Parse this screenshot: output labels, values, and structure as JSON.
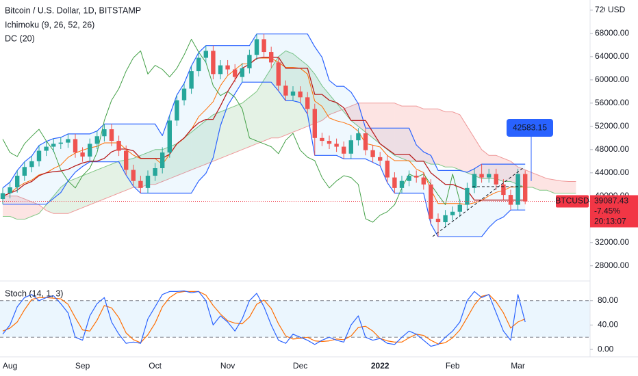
{
  "chart_data": {
    "type": "candlestick",
    "title": "Bitcoin / U.S. Dollar, 1D, BITSTAMP",
    "indicator_labels": [
      "Ichimoku (9, 26, 52, 26)",
      "DC (20)"
    ],
    "currency": "USD",
    "categories": [
      null,
      "Aug",
      null,
      null,
      null,
      null,
      null,
      null,
      null,
      null,
      null,
      "Sep",
      null,
      null,
      null,
      null,
      null,
      null,
      null,
      null,
      null,
      "Oct",
      null,
      null,
      null,
      null,
      null,
      null,
      null,
      null,
      null,
      "Nov",
      null,
      null,
      null,
      null,
      null,
      null,
      null,
      null,
      null,
      "Dec",
      null,
      null,
      null,
      null,
      null,
      null,
      null,
      null,
      null,
      null,
      "2022",
      null,
      null,
      null,
      null,
      null,
      null,
      null,
      null,
      null,
      "Feb",
      null,
      null,
      null,
      null,
      null,
      null,
      null,
      null,
      "Mar",
      null,
      null,
      null,
      null,
      null,
      null,
      null,
      null
    ],
    "up_color": "#26a69a",
    "down_color": "#ef5350",
    "open": [
      39500,
      40500,
      41500,
      43500,
      45000,
      46000,
      47800,
      48500,
      49000,
      49200,
      49800,
      47500,
      46800,
      49000,
      50300,
      51500,
      49500,
      47800,
      44500,
      42600,
      41400,
      43500,
      44800,
      47500,
      53000,
      56500,
      58500,
      61500,
      63800,
      65000,
      61000,
      62500,
      61800,
      60500,
      62000,
      64300,
      67000,
      64800,
      63000,
      59000,
      57300,
      58000,
      57000,
      55000,
      50000,
      49500,
      49000,
      48500,
      47300,
      49600,
      50800,
      47900,
      46700,
      46100,
      43200,
      41400,
      42600,
      43500,
      43200,
      42000,
      36100,
      35500,
      36700,
      37300,
      38500,
      41400,
      43800,
      43200,
      43800,
      42000,
      40200,
      38500,
      43800,
      null,
      null,
      null,
      null,
      null,
      null,
      null
    ],
    "high": [
      41400,
      42400,
      44400,
      45900,
      46900,
      48700,
      49400,
      49900,
      50100,
      50700,
      50700,
      48400,
      49900,
      51200,
      52400,
      52400,
      50400,
      48700,
      45400,
      43500,
      44400,
      45700,
      48400,
      53900,
      57400,
      59400,
      62400,
      64700,
      65900,
      65900,
      63400,
      63400,
      62700,
      62900,
      65200,
      67900,
      67900,
      65700,
      63900,
      59900,
      58900,
      58900,
      57900,
      55900,
      50900,
      50400,
      49900,
      49400,
      50500,
      51700,
      51700,
      48800,
      47600,
      47000,
      44100,
      43500,
      44400,
      44400,
      44100,
      42900,
      37000,
      37600,
      38200,
      39400,
      42300,
      44700,
      45500,
      44700,
      44700,
      42900,
      41100,
      44700,
      44400,
      null,
      null,
      null,
      null,
      null,
      null,
      null
    ],
    "low": [
      38600,
      39600,
      40600,
      42600,
      44100,
      45100,
      46900,
      47600,
      48100,
      48300,
      46600,
      45900,
      45900,
      48100,
      49400,
      48600,
      46900,
      43600,
      41700,
      40500,
      40500,
      42600,
      43900,
      46600,
      52100,
      55600,
      57600,
      60600,
      62900,
      60100,
      60100,
      60900,
      59600,
      59600,
      61100,
      63400,
      63900,
      62100,
      58100,
      56400,
      56400,
      56100,
      54100,
      47000,
      48600,
      48100,
      47600,
      46400,
      46400,
      48700,
      47000,
      45800,
      45200,
      42300,
      40500,
      40500,
      41700,
      42300,
      41100,
      35200,
      33000,
      34600,
      35800,
      36400,
      37600,
      40500,
      42300,
      42300,
      41100,
      39300,
      37600,
      37600,
      38600,
      null,
      null,
      null,
      null,
      null,
      null,
      null
    ],
    "close": [
      40500,
      41500,
      43500,
      45000,
      46000,
      47800,
      48500,
      49000,
      49200,
      49800,
      47500,
      46800,
      49000,
      50300,
      51500,
      49500,
      47800,
      44500,
      42600,
      41400,
      43500,
      44800,
      47500,
      53000,
      56500,
      58500,
      61500,
      63800,
      65000,
      61000,
      62500,
      61800,
      60500,
      62000,
      64300,
      67000,
      64800,
      63000,
      59000,
      57300,
      58000,
      57000,
      55000,
      50000,
      49500,
      49000,
      48500,
      47300,
      49600,
      50800,
      47900,
      46700,
      46100,
      43200,
      41400,
      42600,
      43500,
      43200,
      42000,
      36100,
      35500,
      36700,
      37300,
      38500,
      41400,
      43800,
      43200,
      43800,
      42000,
      40200,
      38500,
      43800,
      39087.43,
      null,
      null,
      null,
      null,
      null,
      null,
      null
    ],
    "donchian": {
      "line_color": "#2962ff",
      "fill": "rgba(33,150,243,0.07)",
      "basis_color": "#ff6d00",
      "upper": [
        41400,
        42400,
        44400,
        45900,
        46900,
        48700,
        49400,
        49900,
        50100,
        50700,
        50700,
        50700,
        50700,
        51200,
        52400,
        52400,
        52400,
        52400,
        52400,
        52400,
        52400,
        52400,
        50400,
        53900,
        57400,
        59400,
        62400,
        64700,
        65900,
        65900,
        65900,
        65900,
        65900,
        65900,
        65900,
        67900,
        67900,
        67900,
        67900,
        67900,
        67900,
        67900,
        67900,
        65700,
        63900,
        59900,
        58900,
        58900,
        57900,
        55900,
        51700,
        51700,
        51700,
        51700,
        51700,
        51700,
        51700,
        48800,
        47600,
        47000,
        44400,
        44400,
        44400,
        44400,
        44100,
        44700,
        45500,
        45500,
        45500,
        45500,
        45500,
        45500,
        45500,
        null,
        null,
        null,
        null,
        null,
        null,
        null
      ],
      "lower": [
        38600,
        38600,
        38600,
        38600,
        38600,
        38600,
        38600,
        39600,
        40600,
        42600,
        44100,
        45100,
        45900,
        45900,
        45900,
        45900,
        45900,
        43600,
        41700,
        40500,
        40500,
        40500,
        40500,
        40500,
        40500,
        40500,
        40500,
        42600,
        43900,
        46600,
        52100,
        55600,
        57600,
        59600,
        59600,
        59600,
        59600,
        59600,
        58100,
        56400,
        56400,
        56100,
        54100,
        47000,
        47000,
        47000,
        47000,
        46400,
        46400,
        46400,
        46400,
        45800,
        45200,
        42300,
        40500,
        40500,
        40500,
        40500,
        40500,
        35200,
        33000,
        33000,
        33000,
        33000,
        33000,
        33000,
        33000,
        34600,
        35800,
        36400,
        37600,
        37600,
        37600,
        null,
        null,
        null,
        null,
        null,
        null,
        null
      ],
      "basis": [
        40000,
        40500,
        41500,
        42250,
        42750,
        43650,
        44000,
        44750,
        45350,
        46650,
        47400,
        47900,
        48300,
        48550,
        49150,
        49150,
        49150,
        48000,
        47050,
        46450,
        46450,
        46450,
        45450,
        47200,
        48950,
        49950,
        51450,
        53650,
        54900,
        56250,
        59000,
        60750,
        61750,
        62750,
        62750,
        63750,
        63750,
        63750,
        63000,
        62150,
        62150,
        62000,
        61000,
        56350,
        55450,
        53450,
        52950,
        52650,
        52150,
        51150,
        49050,
        48750,
        48450,
        47000,
        46100,
        46100,
        46100,
        44650,
        44050,
        41100,
        38700,
        38700,
        38700,
        38700,
        38550,
        38850,
        39250,
        40050,
        40650,
        40950,
        41550,
        41550,
        41550,
        null,
        null,
        null,
        null,
        null,
        null,
        null
      ]
    },
    "ichimoku": {
      "base_color": "#b71c1c",
      "lagging_color": "#43a047",
      "span_a_color": "#81c784",
      "span_b_color": "#ef9a9a",
      "up_cloud": "rgba(67,160,71,0.14)",
      "down_cloud": "rgba(244,67,54,0.14)",
      "base": [
        40000,
        40500,
        41000,
        42000,
        42500,
        43500,
        44000,
        44200,
        44300,
        44600,
        45200,
        45700,
        46000,
        46000,
        46500,
        47600,
        48100,
        48100,
        47800,
        46500,
        46500,
        46500,
        46500,
        47200,
        49000,
        50000,
        51500,
        52600,
        53200,
        53200,
        55500,
        58000,
        60000,
        62000,
        62700,
        63700,
        63900,
        63900,
        63900,
        62000,
        62000,
        62000,
        62000,
        57500,
        57500,
        56500,
        56100,
        55200,
        53000,
        53000,
        53000,
        51000,
        49000,
        48100,
        47200,
        47200,
        47200,
        46000,
        46000,
        44000,
        43000,
        42000,
        42000,
        41500,
        41000,
        39300,
        39300,
        39300,
        39300,
        39300,
        39300,
        39300,
        39300,
        null,
        null,
        null,
        null,
        null,
        null,
        null
      ],
      "lagging": [
        49800,
        47500,
        46800,
        49000,
        50300,
        51500,
        49500,
        47800,
        44500,
        42600,
        41400,
        43500,
        44800,
        47500,
        53000,
        56500,
        58500,
        61500,
        63800,
        65000,
        61000,
        62500,
        61800,
        60500,
        62000,
        64300,
        67000,
        64800,
        63000,
        59000,
        57300,
        58000,
        57000,
        55000,
        50000,
        49500,
        49000,
        48500,
        47300,
        49600,
        50800,
        47900,
        46700,
        46100,
        43200,
        41400,
        42600,
        43500,
        43200,
        42000,
        36100,
        35500,
        36700,
        37300,
        38500,
        41400,
        43800,
        43200,
        43800,
        42000,
        40200,
        38500,
        43800,
        39087.43,
        null,
        null,
        null,
        null,
        null,
        null,
        null,
        null,
        null,
        null,
        null,
        null,
        null,
        null,
        null,
        null
      ],
      "span_a": [
        36500,
        36500,
        36000,
        36000,
        36500,
        37000,
        38500,
        40000,
        41500,
        42500,
        43000,
        43500,
        44000,
        44500,
        45000,
        45500,
        46000,
        46200,
        46500,
        47000,
        47500,
        48000,
        48000,
        48500,
        49000,
        50000,
        51000,
        52000,
        53000,
        54000,
        54500,
        55000,
        55500,
        56000,
        57000,
        58000,
        60000,
        62000,
        64000,
        65000,
        64500,
        63500,
        62500,
        61000,
        59000,
        57500,
        56000,
        54500,
        53000,
        52000,
        51000,
        50000,
        49000,
        48000,
        47000,
        46500,
        46000,
        46000,
        46000,
        45500,
        45500,
        45000,
        45000,
        44500,
        44000,
        43500,
        43000,
        43000,
        43000,
        42500,
        42500,
        42000,
        41500,
        41500,
        41000,
        41000,
        40500,
        40500,
        40500,
        40500
      ],
      "span_b": [
        40000,
        40000,
        40000,
        39500,
        39000,
        38500,
        37500,
        37000,
        37000,
        37000,
        37500,
        38000,
        38500,
        39000,
        39500,
        40000,
        40500,
        41000,
        41500,
        41500,
        42000,
        42000,
        42500,
        43000,
        43500,
        44000,
        44500,
        45000,
        45500,
        46000,
        46500,
        47000,
        47500,
        48000,
        48500,
        49000,
        49500,
        50000,
        50000,
        50500,
        51000,
        51500,
        52000,
        52500,
        53000,
        54000,
        54500,
        55000,
        55500,
        56000,
        56000,
        56000,
        56000,
        56000,
        56000,
        55500,
        55500,
        55500,
        55000,
        55000,
        55000,
        54500,
        54500,
        54000,
        52000,
        50000,
        48000,
        47000,
        47000,
        46500,
        46000,
        45000,
        44500,
        44000,
        43500,
        43000,
        42800,
        42600,
        42500,
        42500
      ]
    },
    "ylim": [
      25500,
      73750
    ],
    "yticks": [
      {
        "value": 28000,
        "label": "28000.00"
      },
      {
        "value": 32000,
        "label": "32000.00"
      },
      {
        "value": 36000,
        "label": "36000.00"
      },
      {
        "value": 40000,
        "label": "40000.00"
      },
      {
        "value": 44000,
        "label": "44000.00"
      },
      {
        "value": 48000,
        "label": "48000.00"
      },
      {
        "value": 52000,
        "label": "52000.00"
      },
      {
        "value": 56000,
        "label": "56000.00"
      },
      {
        "value": 60000,
        "label": "60000.00"
      },
      {
        "value": 64000,
        "label": "64000.00"
      },
      {
        "value": 68000,
        "label": "68000.00"
      },
      {
        "value": 72000,
        "label": "72000.00"
      }
    ],
    "last_price": {
      "symbol": "BTCUSD",
      "value": 39087.43,
      "change": {
        "value": -7.45,
        "label": "-7.45%"
      },
      "countdown": "20:13:07",
      "color": "#f23645"
    },
    "callout": {
      "value": 42583.15,
      "color": "#2962ff"
    },
    "oscillator": {
      "type": "line",
      "label": "Stoch (14, 1, 3)",
      "ylim": [
        -10,
        110
      ],
      "yticks": [
        {
          "value": 0,
          "label": "0.00"
        },
        {
          "value": 40,
          "label": "40.00"
        },
        {
          "value": 80,
          "label": "80.00"
        }
      ],
      "bands": [
        20,
        80
      ],
      "band_fill": "rgba(33,150,243,0.09)",
      "k": {
        "color": "#2962ff",
        "values": [
          25,
          40,
          70,
          85,
          90,
          80,
          85,
          88,
          75,
          60,
          20,
          15,
          55,
          75,
          85,
          45,
          25,
          10,
          12,
          10,
          50,
          70,
          90,
          95,
          95,
          96,
          93,
          95,
          80,
          40,
          55,
          45,
          30,
          50,
          80,
          92,
          70,
          40,
          15,
          10,
          25,
          20,
          15,
          8,
          15,
          20,
          15,
          12,
          40,
          55,
          20,
          15,
          18,
          10,
          8,
          20,
          30,
          25,
          15,
          5,
          8,
          20,
          30,
          45,
          80,
          95,
          85,
          90,
          60,
          30,
          15,
          90,
          45,
          null,
          null,
          null,
          null,
          null,
          null,
          null
        ]
      },
      "d": {
        "color": "#ff6d00",
        "values": [
          30,
          35,
          45,
          65,
          82,
          85,
          85,
          84,
          83,
          74,
          52,
          32,
          30,
          48,
          72,
          68,
          52,
          27,
          16,
          11,
          24,
          43,
          70,
          85,
          93,
          95,
          95,
          95,
          89,
          72,
          58,
          47,
          43,
          42,
          53,
          74,
          81,
          67,
          42,
          22,
          17,
          18,
          20,
          14,
          13,
          14,
          17,
          16,
          22,
          36,
          38,
          30,
          18,
          14,
          12,
          12,
          19,
          25,
          23,
          15,
          9,
          11,
          19,
          32,
          52,
          73,
          87,
          90,
          78,
          60,
          35,
          45,
          50,
          null,
          null,
          null,
          null,
          null,
          null,
          null
        ]
      }
    }
  }
}
